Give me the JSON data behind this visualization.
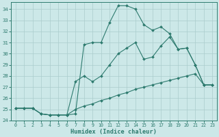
{
  "xlabel": "Humidex (Indice chaleur)",
  "bg_color": "#cce8e8",
  "line_color": "#2d7a6e",
  "grid_color": "#aacccc",
  "xlim": [
    -0.5,
    23.5
  ],
  "ylim": [
    24,
    34.6
  ],
  "xticks": [
    0,
    1,
    2,
    3,
    4,
    5,
    6,
    7,
    8,
    9,
    10,
    11,
    12,
    13,
    14,
    15,
    16,
    17,
    18,
    19,
    20,
    21,
    22,
    23
  ],
  "yticks": [
    24,
    25,
    26,
    27,
    28,
    29,
    30,
    31,
    32,
    33,
    34
  ],
  "curve1_x": [
    0,
    1,
    2,
    3,
    4,
    5,
    6,
    7,
    8,
    9,
    10,
    11,
    12,
    13,
    14,
    15,
    16,
    17,
    18,
    19,
    20,
    21,
    22,
    23
  ],
  "curve1_y": [
    25.1,
    25.1,
    25.1,
    24.6,
    24.5,
    24.5,
    24.5,
    24.6,
    30.8,
    31.0,
    31.0,
    32.8,
    34.3,
    34.3,
    34.0,
    32.6,
    32.1,
    32.4,
    31.8,
    30.4,
    30.5,
    29.0,
    27.2,
    27.2
  ],
  "curve2_x": [
    0,
    1,
    2,
    3,
    4,
    5,
    6,
    7,
    8,
    9,
    10,
    11,
    12,
    13,
    14,
    15,
    16,
    17,
    18,
    19,
    20,
    21,
    22,
    23
  ],
  "curve2_y": [
    25.1,
    25.1,
    25.1,
    24.6,
    24.5,
    24.5,
    24.5,
    27.5,
    28.0,
    27.5,
    28.0,
    29.0,
    30.0,
    30.5,
    31.0,
    29.5,
    29.7,
    30.7,
    31.5,
    30.4,
    30.5,
    29.0,
    27.2,
    27.2
  ],
  "curve3_x": [
    0,
    1,
    2,
    3,
    4,
    5,
    6,
    7,
    8,
    9,
    10,
    11,
    12,
    13,
    14,
    15,
    16,
    17,
    18,
    19,
    20,
    21,
    22,
    23
  ],
  "curve3_y": [
    25.1,
    25.1,
    25.1,
    24.6,
    24.5,
    24.5,
    24.5,
    25.0,
    25.3,
    25.5,
    25.8,
    26.0,
    26.3,
    26.5,
    26.8,
    27.0,
    27.2,
    27.4,
    27.6,
    27.8,
    28.0,
    28.2,
    27.2,
    27.2
  ]
}
